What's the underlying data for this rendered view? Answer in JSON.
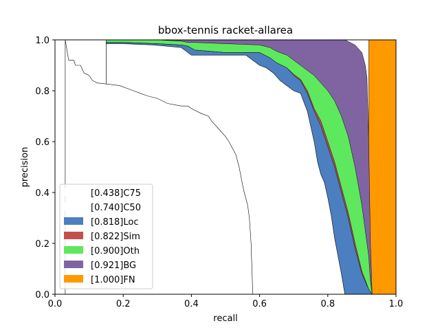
{
  "chart_data": {
    "type": "area",
    "title": "bbox-tennis racket-allarea",
    "xlabel": "recall",
    "ylabel": "precision",
    "xlim": [
      0,
      1
    ],
    "ylim": [
      0,
      1
    ],
    "xticks": [
      "0.0",
      "0.2",
      "0.4",
      "0.6",
      "0.8",
      "1.0"
    ],
    "yticks": [
      "0.0",
      "0.2",
      "0.4",
      "0.6",
      "0.8",
      "1.0"
    ],
    "grid": false,
    "legend_position": "lower-left",
    "legend": [
      {
        "label": "[0.438]C75",
        "color": "#ffffff"
      },
      {
        "label": "[0.740]C50",
        "color": "#ffffff"
      },
      {
        "label": "[0.818]Loc",
        "color": "#4c7fc0"
      },
      {
        "label": "[0.822]Sim",
        "color": "#c0504d"
      },
      {
        "label": "[0.900]Oth",
        "color": "#5ee85e"
      },
      {
        "label": "[0.921]BG",
        "color": "#8064a2"
      },
      {
        "label": "[1.000]FN",
        "color": "#ff9900"
      }
    ],
    "series": [
      {
        "name": "[0.438]C75",
        "x": [
          0.03,
          0.04,
          0.045,
          0.055,
          0.06,
          0.075,
          0.085,
          0.1,
          0.11,
          0.125,
          0.13,
          0.19,
          0.23,
          0.25,
          0.27,
          0.3,
          0.33,
          0.37,
          0.39,
          0.4,
          0.43,
          0.45,
          0.46,
          0.48,
          0.5,
          0.51,
          0.53,
          0.54,
          0.55,
          0.555,
          0.565,
          0.57,
          0.575,
          0.58
        ],
        "y": [
          1.0,
          0.92,
          0.92,
          0.92,
          0.9,
          0.9,
          0.87,
          0.86,
          0.84,
          0.83,
          0.83,
          0.82,
          0.8,
          0.79,
          0.78,
          0.77,
          0.75,
          0.74,
          0.74,
          0.73,
          0.71,
          0.7,
          0.68,
          0.65,
          0.62,
          0.6,
          0.55,
          0.5,
          0.43,
          0.4,
          0.35,
          0.3,
          0.2,
          0.0
        ]
      },
      {
        "name": "[0.740]C50",
        "x": [
          0.15,
          0.2,
          0.29,
          0.37,
          0.38,
          0.4,
          0.5,
          0.56,
          0.6,
          0.62,
          0.64,
          0.66,
          0.68,
          0.69,
          0.7,
          0.72,
          0.74,
          0.75,
          0.76,
          0.77,
          0.78,
          0.79,
          0.8,
          0.81,
          0.82,
          0.83,
          0.84,
          0.85
        ],
        "y": [
          0.985,
          0.985,
          0.98,
          0.97,
          0.96,
          0.94,
          0.94,
          0.94,
          0.9,
          0.89,
          0.87,
          0.84,
          0.82,
          0.81,
          0.8,
          0.79,
          0.72,
          0.66,
          0.6,
          0.52,
          0.47,
          0.44,
          0.38,
          0.31,
          0.22,
          0.15,
          0.08,
          0.0
        ]
      },
      {
        "name": "[0.818]Loc",
        "x": [
          0.15,
          0.2,
          0.3,
          0.37,
          0.39,
          0.41,
          0.5,
          0.6,
          0.63,
          0.65,
          0.68,
          0.7,
          0.72,
          0.74,
          0.76,
          0.78,
          0.8,
          0.82,
          0.84,
          0.86,
          0.88,
          0.9,
          0.92,
          0.925,
          0.93
        ],
        "y": [
          0.99,
          0.99,
          0.985,
          0.98,
          0.975,
          0.96,
          0.95,
          0.95,
          0.93,
          0.91,
          0.89,
          0.86,
          0.84,
          0.79,
          0.72,
          0.66,
          0.58,
          0.5,
          0.4,
          0.3,
          0.18,
          0.08,
          0.02,
          0.01,
          0.0
        ]
      },
      {
        "name": "[0.822]Sim",
        "x": [
          0.15,
          0.2,
          0.3,
          0.37,
          0.39,
          0.41,
          0.5,
          0.6,
          0.63,
          0.65,
          0.68,
          0.7,
          0.72,
          0.74,
          0.76,
          0.78,
          0.8,
          0.82,
          0.84,
          0.86,
          0.88,
          0.9,
          0.92,
          0.925,
          0.93
        ],
        "y": [
          0.99,
          0.99,
          0.985,
          0.98,
          0.975,
          0.96,
          0.95,
          0.95,
          0.93,
          0.91,
          0.89,
          0.865,
          0.845,
          0.8,
          0.73,
          0.68,
          0.6,
          0.52,
          0.42,
          0.32,
          0.2,
          0.09,
          0.02,
          0.01,
          0.0
        ]
      },
      {
        "name": "[0.900]Oth",
        "x": [
          0.15,
          0.2,
          0.3,
          0.37,
          0.39,
          0.41,
          0.5,
          0.6,
          0.63,
          0.65,
          0.68,
          0.7,
          0.72,
          0.74,
          0.76,
          0.78,
          0.8,
          0.82,
          0.84,
          0.86,
          0.88,
          0.9,
          0.92,
          0.925,
          0.93
        ],
        "y": [
          1.0,
          1.0,
          1.0,
          0.995,
          0.99,
          0.99,
          0.985,
          0.98,
          0.97,
          0.955,
          0.94,
          0.92,
          0.9,
          0.88,
          0.86,
          0.83,
          0.8,
          0.76,
          0.7,
          0.62,
          0.5,
          0.35,
          0.15,
          0.05,
          0.0
        ]
      },
      {
        "name": "[0.921]BG",
        "x": [
          0.15,
          0.3,
          0.5,
          0.65,
          0.75,
          0.85,
          0.88,
          0.9,
          0.91,
          0.915,
          0.92,
          0.925,
          0.93
        ],
        "y": [
          1.0,
          1.0,
          1.0,
          1.0,
          1.0,
          1.0,
          0.98,
          0.95,
          0.9,
          0.85,
          0.6,
          0.2,
          0.0
        ]
      },
      {
        "name": "[1.000]FN",
        "x": [
          0.92,
          1.0
        ],
        "y": [
          1.0,
          1.0
        ]
      }
    ]
  }
}
